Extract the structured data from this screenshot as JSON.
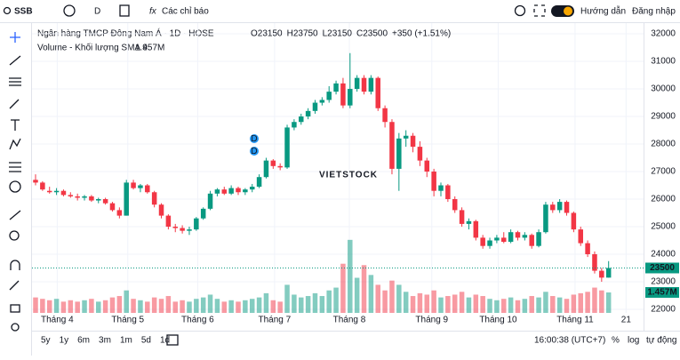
{
  "toolbar": {
    "symbol": "SSB",
    "interval": "D",
    "indicators": "Các chỉ báo",
    "guide": "Hướng dẫn",
    "login": "Đăng nhập"
  },
  "chart_data": {
    "type": "candlestick",
    "title": "Ngân hàng TMCP Đông Nam Á · 1D · HOSE",
    "ohlc_legend": [
      "O23150",
      "H23750",
      "L23150",
      "C23500",
      "+350 (+1.51%)"
    ],
    "volume_title": "Volume - Khối lượng SMA 9",
    "volume_label": "1.457M",
    "watermark": "VIETSTOCK",
    "events": [
      "D",
      "D"
    ],
    "up_color": "#089981",
    "down_color": "#f23645",
    "last_price": 23500,
    "ylim": [
      21870,
      32260
    ],
    "yticks": [
      22000,
      23000,
      24000,
      25000,
      26000,
      27000,
      28000,
      29000,
      30000,
      31000,
      32000
    ],
    "xlim": [
      0,
      87
    ],
    "xticks": [
      {
        "value": 3.1,
        "label": "Tháng 4"
      },
      {
        "value": 13.2,
        "label": "Tháng 5"
      },
      {
        "value": 23.2,
        "label": "Tháng 6"
      },
      {
        "value": 34.2,
        "label": "Tháng 7"
      },
      {
        "value": 44.9,
        "label": "Tháng 8"
      },
      {
        "value": 56.7,
        "label": "Tháng 9"
      },
      {
        "value": 66.2,
        "label": "Tháng 10"
      },
      {
        "value": 77.2,
        "label": "Tháng 11"
      },
      {
        "value": 84.5,
        "label": "21"
      }
    ],
    "ohlc": [
      [
        26700,
        26900,
        26500,
        26600
      ],
      [
        26600,
        26650,
        26300,
        26350
      ],
      [
        26300,
        26450,
        26200,
        26250
      ],
      [
        26250,
        26400,
        26150,
        26300
      ],
      [
        26300,
        26350,
        26100,
        26150
      ],
      [
        26150,
        26250,
        26050,
        26100
      ],
      [
        26100,
        26200,
        25950,
        26050
      ],
      [
        26050,
        26150,
        25950,
        26100
      ],
      [
        26100,
        26150,
        25900,
        25950
      ],
      [
        25950,
        26050,
        25850,
        26000
      ],
      [
        26000,
        26050,
        25800,
        25850
      ],
      [
        25850,
        25900,
        25550,
        25600
      ],
      [
        25600,
        25700,
        25300,
        25400
      ],
      [
        25400,
        26700,
        25400,
        26600
      ],
      [
        26600,
        26700,
        26350,
        26400
      ],
      [
        26400,
        26550,
        26250,
        26500
      ],
      [
        26500,
        26550,
        26200,
        26250
      ],
      [
        26250,
        26300,
        25700,
        25800
      ],
      [
        25800,
        25850,
        25300,
        25400
      ],
      [
        25400,
        25450,
        24900,
        25000
      ],
      [
        25000,
        25100,
        24800,
        24950
      ],
      [
        24950,
        25050,
        24750,
        24850
      ],
      [
        24850,
        25000,
        24700,
        24900
      ],
      [
        24900,
        25350,
        24850,
        25300
      ],
      [
        25300,
        25700,
        25250,
        25650
      ],
      [
        25650,
        26300,
        25600,
        26200
      ],
      [
        26200,
        26400,
        26100,
        26350
      ],
      [
        26350,
        26450,
        26150,
        26200
      ],
      [
        26200,
        26500,
        26150,
        26400
      ],
      [
        26400,
        26450,
        26150,
        26250
      ],
      [
        26250,
        26400,
        26150,
        26350
      ],
      [
        26350,
        26550,
        26250,
        26450
      ],
      [
        26450,
        26900,
        26400,
        26800
      ],
      [
        26800,
        27500,
        26750,
        27400
      ],
      [
        27400,
        27450,
        27100,
        27200
      ],
      [
        27200,
        27300,
        27050,
        27150
      ],
      [
        27150,
        28700,
        27100,
        28600
      ],
      [
        28600,
        28900,
        28500,
        28800
      ],
      [
        28800,
        29100,
        28700,
        29000
      ],
      [
        29000,
        29300,
        28900,
        29200
      ],
      [
        29200,
        29600,
        29100,
        29500
      ],
      [
        29500,
        29700,
        29400,
        29600
      ],
      [
        29600,
        30100,
        29500,
        29900
      ],
      [
        29900,
        30300,
        29800,
        30200
      ],
      [
        30200,
        30400,
        29300,
        29400
      ],
      [
        29400,
        31300,
        29300,
        30000
      ],
      [
        30000,
        30500,
        29900,
        30400
      ],
      [
        30400,
        30500,
        29800,
        29900
      ],
      [
        29900,
        30500,
        29800,
        30400
      ],
      [
        30400,
        30450,
        29200,
        29300
      ],
      [
        29300,
        29400,
        28600,
        28800
      ],
      [
        28800,
        28900,
        26900,
        27100
      ],
      [
        27100,
        28400,
        26300,
        28200
      ],
      [
        28200,
        28500,
        27900,
        28300
      ],
      [
        28300,
        28400,
        27700,
        27900
      ],
      [
        27900,
        28100,
        27200,
        27400
      ],
      [
        27400,
        27500,
        26800,
        27000
      ],
      [
        27000,
        27100,
        26100,
        26300
      ],
      [
        26300,
        26600,
        26100,
        26500
      ],
      [
        26500,
        26550,
        25900,
        26000
      ],
      [
        26000,
        26100,
        25500,
        25600
      ],
      [
        25600,
        25700,
        25000,
        25100
      ],
      [
        25100,
        25300,
        24900,
        25200
      ],
      [
        25200,
        25250,
        24500,
        24600
      ],
      [
        24600,
        24700,
        24200,
        24300
      ],
      [
        24300,
        24600,
        24200,
        24500
      ],
      [
        24500,
        24700,
        24400,
        24600
      ],
      [
        24600,
        24800,
        24400,
        24450
      ],
      [
        24450,
        24900,
        24400,
        24800
      ],
      [
        24800,
        24850,
        24500,
        24600
      ],
      [
        24600,
        24800,
        24500,
        24700
      ],
      [
        24700,
        24750,
        24200,
        24300
      ],
      [
        24300,
        24900,
        24250,
        24800
      ],
      [
        24800,
        25900,
        24750,
        25800
      ],
      [
        25800,
        25900,
        25500,
        25600
      ],
      [
        25600,
        26000,
        25500,
        25900
      ],
      [
        25900,
        25950,
        25400,
        25500
      ],
      [
        25500,
        25550,
        24800,
        24900
      ],
      [
        24900,
        25000,
        24300,
        24400
      ],
      [
        24400,
        24500,
        23900,
        24000
      ],
      [
        24000,
        24100,
        23300,
        23400
      ],
      [
        23400,
        23500,
        23000,
        23150
      ],
      [
        23150,
        23750,
        23150,
        23500
      ]
    ],
    "volume": [
      1.1,
      1.0,
      0.9,
      1.0,
      0.8,
      0.9,
      0.8,
      0.9,
      1.0,
      0.8,
      0.9,
      1.1,
      1.2,
      1.6,
      1.0,
      0.9,
      0.8,
      1.1,
      1.0,
      1.2,
      0.8,
      0.9,
      0.8,
      1.0,
      1.1,
      1.3,
      1.0,
      0.8,
      0.9,
      0.8,
      0.9,
      1.0,
      1.1,
      1.4,
      0.9,
      0.8,
      2.0,
      1.3,
      1.1,
      1.2,
      1.4,
      1.2,
      1.6,
      1.8,
      3.5,
      5.2,
      2.5,
      3.4,
      2.7,
      2.0,
      1.6,
      2.3,
      2.0,
      1.5,
      1.2,
      1.4,
      1.3,
      1.6,
      1.1,
      1.2,
      1.3,
      1.5,
      1.1,
      1.3,
      1.2,
      1.0,
      0.9,
      1.0,
      1.1,
      0.9,
      1.0,
      1.2,
      1.1,
      1.5,
      1.2,
      1.1,
      1.0,
      1.3,
      1.4,
      1.5,
      1.8,
      1.6,
      1.457
    ]
  },
  "footer": {
    "ranges": [
      "5y",
      "1y",
      "6m",
      "3m",
      "1m",
      "5d",
      "1d"
    ],
    "time": "16:00:38 (UTC+7)",
    "percent": "%",
    "log": "log",
    "auto": "tự động"
  }
}
